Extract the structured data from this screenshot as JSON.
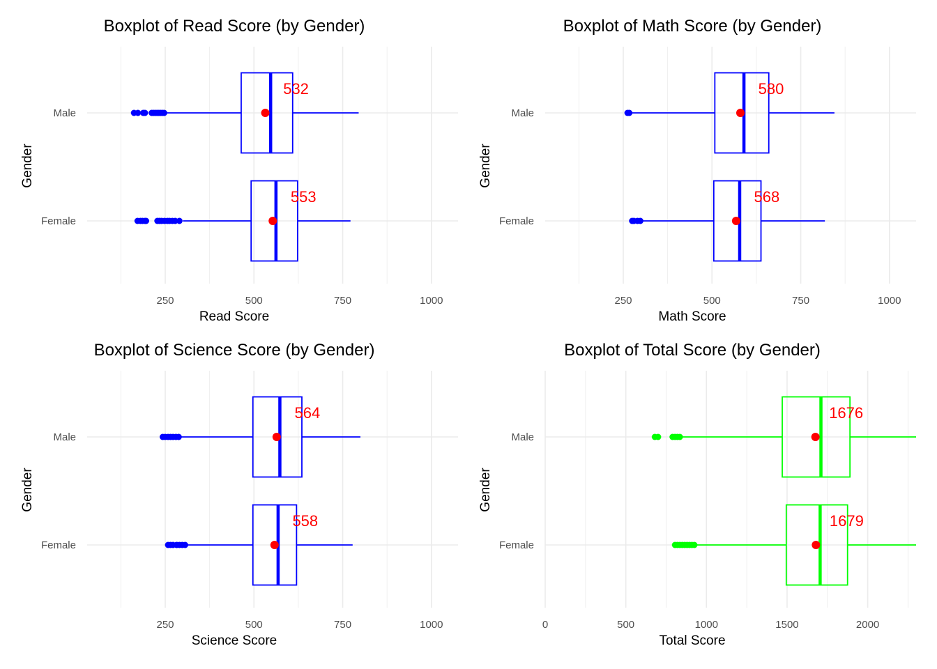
{
  "colors": {
    "grid": "#ebebeb",
    "annotation": "#ff0000",
    "mean": "#ff0000"
  },
  "chart_data": [
    {
      "type": "boxplot",
      "title": "Boxplot of Read Score (by Gender)",
      "xlabel": "Read Score",
      "ylabel": "Gender",
      "xlim": [
        30,
        1075
      ],
      "xticks": [
        250,
        500,
        750,
        1000
      ],
      "color": "#0000ff",
      "grid": true,
      "categories": [
        "Female",
        "Male"
      ],
      "series": [
        {
          "category": "Male",
          "whisker_low": 250,
          "q1": 464,
          "median": 547,
          "q3": 609,
          "whisker_high": 795,
          "mean": 532,
          "mean_label": "532",
          "outliers": [
            162,
            173,
            188,
            193,
            212,
            217,
            222,
            227,
            232,
            237,
            242,
            247
          ]
        },
        {
          "category": "Female",
          "whisker_low": 300,
          "q1": 492,
          "median": 562,
          "q3": 623,
          "whisker_high": 772,
          "mean": 553,
          "mean_label": "553",
          "outliers": [
            172,
            180,
            186,
            193,
            196,
            228,
            234,
            240,
            248,
            256,
            262,
            270,
            278,
            290
          ]
        }
      ]
    },
    {
      "type": "boxplot",
      "title": "Boxplot of Math Score (by Gender)",
      "xlabel": "Math Score",
      "ylabel": "Gender",
      "xlim": [
        30,
        1075
      ],
      "xticks": [
        250,
        500,
        750,
        1000
      ],
      "color": "#0000ff",
      "grid": true,
      "categories": [
        "Female",
        "Male"
      ],
      "series": [
        {
          "category": "Male",
          "whisker_low": 272,
          "q1": 508,
          "median": 590,
          "q3": 660,
          "whisker_high": 845,
          "mean": 580,
          "mean_label": "580",
          "outliers": [
            262,
            267
          ]
        },
        {
          "category": "Female",
          "whisker_low": 303,
          "q1": 505,
          "median": 578,
          "q3": 638,
          "whisker_high": 818,
          "mean": 568,
          "mean_label": "568",
          "outliers": [
            275,
            280,
            290,
            298
          ]
        }
      ]
    },
    {
      "type": "boxplot",
      "title": "Boxplot of Science Score (by Gender)",
      "xlabel": "Science Score",
      "ylabel": "Gender",
      "xlim": [
        30,
        1075
      ],
      "xticks": [
        250,
        500,
        750,
        1000
      ],
      "color": "#0000ff",
      "grid": true,
      "categories": [
        "Female",
        "Male"
      ],
      "series": [
        {
          "category": "Male",
          "whisker_low": 290,
          "q1": 497,
          "median": 573,
          "q3": 635,
          "whisker_high": 800,
          "mean": 564,
          "mean_label": "564",
          "outliers": [
            243,
            250,
            258,
            265,
            272,
            280,
            288
          ]
        },
        {
          "category": "Female",
          "whisker_low": 312,
          "q1": 497,
          "median": 568,
          "q3": 620,
          "whisker_high": 778,
          "mean": 558,
          "mean_label": "558",
          "outliers": [
            258,
            265,
            272,
            282,
            290,
            298,
            306
          ]
        }
      ]
    },
    {
      "type": "boxplot",
      "title": "Boxplot of Total Score (by Gender)",
      "xlabel": "Total Score",
      "ylabel": "Gender",
      "xlim": [
        0,
        2300
      ],
      "xticks": [
        0,
        500,
        1000,
        1500,
        2000
      ],
      "color": "#00ff00",
      "grid": true,
      "categories": [
        "Female",
        "Male"
      ],
      "series": [
        {
          "category": "Male",
          "whisker_low": 835,
          "q1": 1470,
          "median": 1710,
          "q3": 1890,
          "whisker_high": 2300,
          "mean": 1676,
          "mean_label": "1676",
          "outliers": [
            680,
            700,
            790,
            805,
            820,
            835
          ]
        },
        {
          "category": "Female",
          "whisker_low": 930,
          "q1": 1495,
          "median": 1705,
          "q3": 1875,
          "whisker_high": 2300,
          "mean": 1679,
          "mean_label": "1679",
          "outliers": [
            805,
            820,
            835,
            850,
            865,
            880,
            895,
            910,
            925
          ]
        }
      ]
    }
  ]
}
